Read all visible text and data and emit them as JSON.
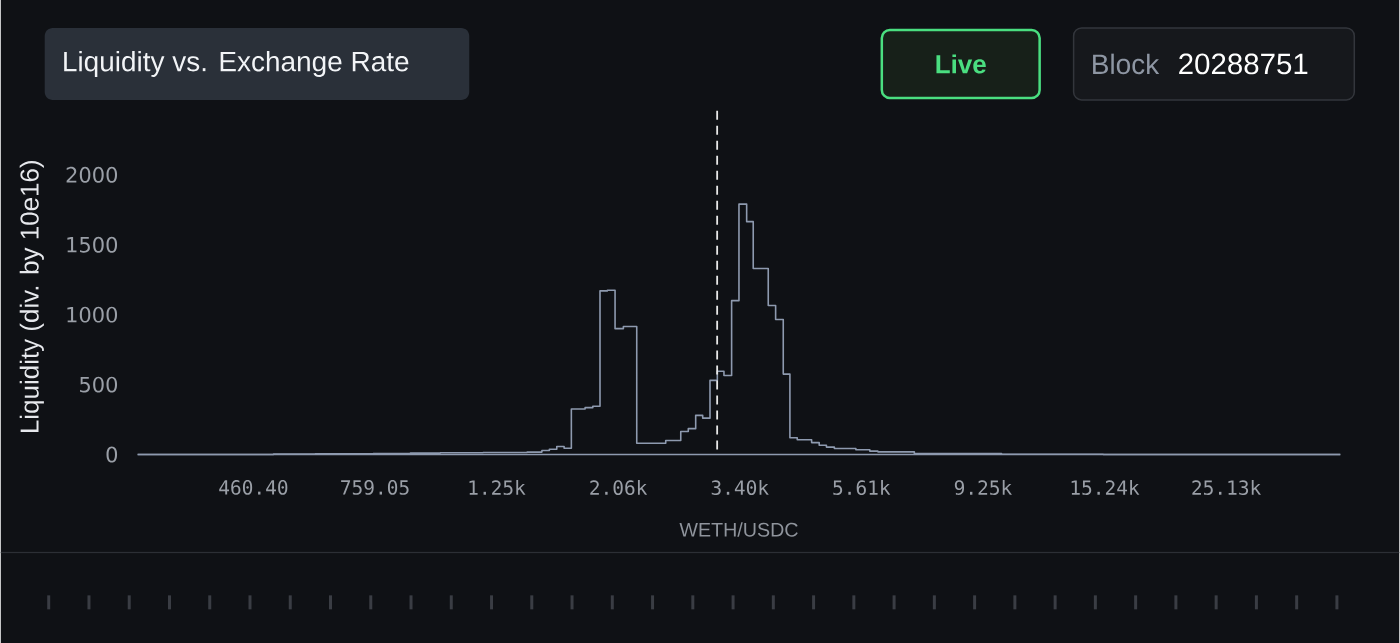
{
  "chart_data": {
    "type": "step",
    "title": "Liquidity vs. Exchange Rate",
    "xlabel": "WETH/USDC",
    "ylabel": "Liquidity (div. by 10e16)",
    "annotations": [
      "Live",
      "Block",
      "20288751"
    ],
    "x": [
      286,
      500,
      594,
      754,
      878,
      993,
      1184,
      1419,
      1508,
      1555,
      1603,
      1652,
      1702,
      1801,
      1859,
      1915,
      1974,
      2037,
      2108,
      2227,
      2509,
      2669,
      2753,
      2838,
      2921,
      3010,
      3102,
      3188,
      3290,
      3391,
      3500,
      3596,
      3825,
      3943,
      4068,
      4181,
      4309,
      4571,
      4716,
      4858,
      5020,
      5484,
      5808,
      6003,
      6974,
      9982,
      15166,
      40200
    ],
    "values": [
      0,
      3,
      5,
      7,
      10,
      12,
      14,
      17,
      29,
      38,
      57,
      45,
      325,
      335,
      345,
      1170,
      1175,
      900,
      915,
      80,
      100,
      165,
      185,
      280,
      260,
      530,
      595,
      565,
      1100,
      1790,
      1665,
      1330,
      1065,
      965,
      575,
      120,
      105,
      85,
      66,
      53,
      43,
      34,
      24,
      19,
      6,
      2,
      0,
      0
    ],
    "color": "#8e9aaf",
    "marker": "none",
    "log": "x",
    "xlim": [
      286,
      40200
    ],
    "ylim": [
      0,
      2000
    ],
    "xticks": [
      {
        "value": 460.4,
        "label": "460.40"
      },
      {
        "value": 759.05,
        "label": "759.05"
      },
      {
        "value": 1251,
        "label": "1.25k"
      },
      {
        "value": 2063,
        "label": "2.06k"
      },
      {
        "value": 3402,
        "label": "3.40k"
      },
      {
        "value": 5608,
        "label": "5.61k"
      },
      {
        "value": 9247,
        "label": "9.25k"
      },
      {
        "value": 15245,
        "label": "15.24k"
      },
      {
        "value": 25135,
        "label": "25.13k"
      }
    ],
    "yticks": [
      0,
      500,
      1000,
      1500,
      2000
    ],
    "ref_lines": [
      {
        "axis": "x",
        "value": 3100,
        "color": "#e8e8e8",
        "line_style": "dashed"
      }
    ]
  }
}
